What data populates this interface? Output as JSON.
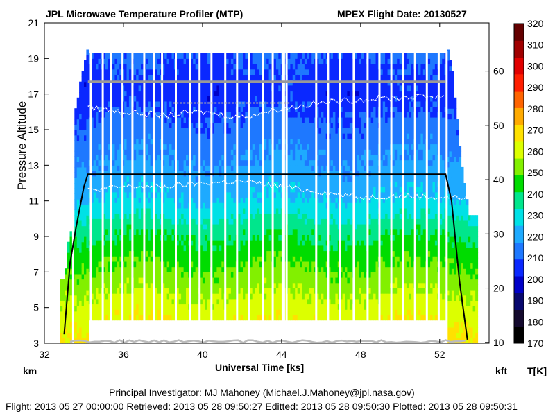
{
  "chart_data": {
    "type": "heatmap",
    "title": "JPL Microwave Temperature Profiler (MTP)",
    "title_right": "MPEX  Flight Date: 20130527",
    "xlabel": "Universal Time [ks]",
    "ylabel": "Pressure Altitude",
    "x_unit_left": "km",
    "y2_unit": "kft",
    "colorbar_unit": "T[K]",
    "xlim": [
      32,
      54.5
    ],
    "ylim": [
      3,
      21
    ],
    "x_ticks": [
      "32",
      "36",
      "40",
      "44",
      "48",
      "52"
    ],
    "y_ticks": [
      "3",
      "5",
      "7",
      "9",
      "11",
      "13",
      "15",
      "17",
      "19",
      "21"
    ],
    "y2_ticks": [
      "10",
      "20",
      "30",
      "40",
      "50",
      "60"
    ],
    "colorbar": {
      "range": [
        170,
        320
      ],
      "ticks": [
        "170",
        "180",
        "190",
        "200",
        "210",
        "220",
        "230",
        "240",
        "250",
        "260",
        "270",
        "280",
        "290",
        "300",
        "310",
        "320"
      ],
      "colors": [
        "#000000",
        "#140a2e",
        "#08086e",
        "#0000c8",
        "#0a28ff",
        "#1e78ff",
        "#1eaaff",
        "#00e1e6",
        "#00e68c",
        "#00dc00",
        "#82f000",
        "#dcff00",
        "#ffe100",
        "#ffaa00",
        "#ff6400",
        "#ff1e00",
        "#e10000",
        "#a00000",
        "#640000"
      ]
    },
    "temperature_profile_K": {
      "altitude_km": [
        3,
        5,
        7,
        9,
        11,
        13,
        15,
        17,
        19
      ],
      "temperature": [
        268,
        260,
        250,
        240,
        225,
        218,
        212,
        205,
        210
      ]
    },
    "flight_altitude_km": {
      "time_ks": [
        33.0,
        33.3,
        33.6,
        34.0,
        34.2,
        52.3,
        52.6,
        53.0,
        53.4
      ],
      "altitude": [
        3.5,
        7.5,
        9.5,
        11.8,
        12.5,
        12.5,
        11.0,
        6.5,
        3.2
      ]
    },
    "tropopause_km": {
      "time_ks": [
        34,
        36,
        38,
        40,
        42,
        44,
        46,
        48,
        50,
        52,
        54
      ],
      "altitude": [
        11.6,
        11.8,
        11.8,
        12.0,
        12.1,
        11.8,
        11.5,
        11.2,
        11.3,
        11.2,
        11.2
      ]
    },
    "upper_tropopause_km": {
      "time_ks": [
        34,
        36,
        38,
        40,
        42,
        44,
        46,
        48,
        50,
        52
      ],
      "altitude": [
        16.3,
        16.0,
        15.8,
        16.0,
        15.7,
        16.2,
        16.5,
        16.7,
        16.8,
        16.9
      ]
    },
    "reference_line_km": 17.7,
    "reference_line2_km": 16.5,
    "ground_km": 3.1
  },
  "footer": {
    "pi": "Principal Investigator: MJ Mahoney (Michael.J.Mahoney@jpl.nasa.gov)",
    "dates": "Flight: 2013 05 27 00:00:00   Retrieved: 2013 05 28 09:50:27   Editted: 2013 05 28 09:50:30   Plotted: 2013 05 28 09:50:31"
  }
}
